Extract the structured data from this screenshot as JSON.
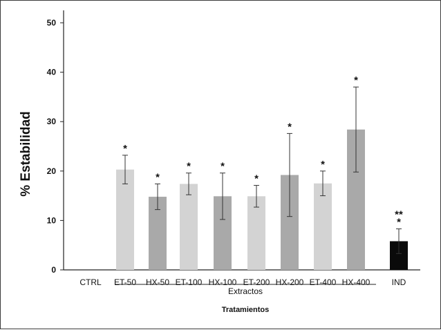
{
  "chart_data": {
    "type": "bar",
    "ylabel": "% Estabilidad",
    "xlabel": "Tratamientos",
    "group_label": "Extractos",
    "ylim": [
      0,
      50
    ],
    "yticks": [
      "0",
      "10",
      "20",
      "30",
      "40",
      "50"
    ],
    "grid": false,
    "categories": [
      "CTRL",
      "ET-50",
      "HX-50",
      "ET-100",
      "HX-100",
      "ET-200",
      "HX-200",
      "ET-400",
      "HX-400",
      "IND"
    ],
    "values": [
      0,
      20.3,
      14.8,
      17.4,
      14.9,
      14.9,
      19.2,
      17.5,
      28.4,
      5.8
    ],
    "errors": [
      0,
      2.9,
      2.6,
      2.2,
      4.7,
      2.2,
      8.4,
      2.5,
      8.6,
      2.5
    ],
    "annotations": [
      "",
      "*",
      "*",
      "*",
      "*",
      "*",
      "*",
      "*",
      "*",
      "**\n*"
    ],
    "colors": {
      "light": "#d3d3d3",
      "medium": "#a9a9a9",
      "dark": "#0a0a0a"
    },
    "bar_colors": [
      "none",
      "light",
      "medium",
      "light",
      "medium",
      "light",
      "medium",
      "light",
      "medium",
      "dark"
    ]
  }
}
